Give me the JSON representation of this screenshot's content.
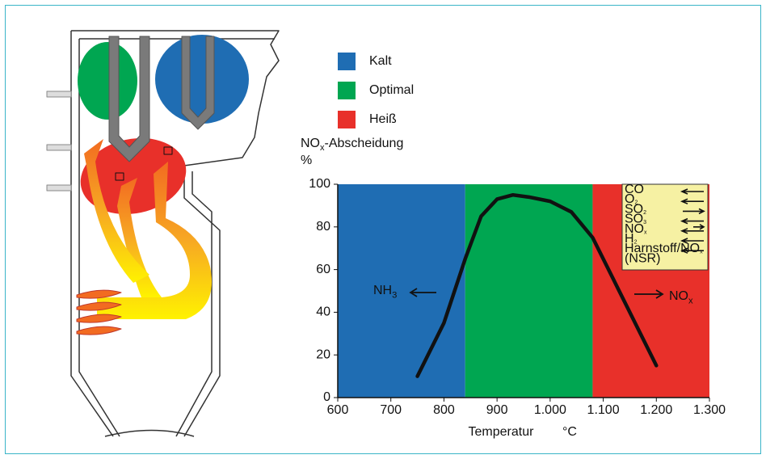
{
  "chart_data": {
    "type": "line",
    "y_label": {
      "text": "NO",
      "sub": "x",
      "rest": "-Abscheidung"
    },
    "y_unit": "%",
    "x_label": "Temperatur",
    "x_unit": "°C",
    "regions": [
      {
        "name": "Kalt",
        "color": "#1f6db3",
        "from": 600,
        "to": 840
      },
      {
        "name": "Optimal",
        "color": "#00a651",
        "from": 840,
        "to": 1080
      },
      {
        "name": "Heiß",
        "color": "#e8302a",
        "from": 1080,
        "to": 1300
      }
    ],
    "x": [
      750,
      800,
      840,
      870,
      900,
      930,
      960,
      1000,
      1040,
      1080,
      1120,
      1160,
      1200
    ],
    "series": [
      {
        "color": "#111111",
        "values": [
          10,
          35,
          65,
          85,
          93,
          95,
          94,
          92,
          87,
          75,
          55,
          35,
          15
        ]
      }
    ],
    "xlim": [
      600,
      1300
    ],
    "ylim": [
      0,
      100
    ],
    "xticks": [
      600,
      700,
      800,
      900,
      {
        "value": 1000,
        "label": "1.000"
      },
      {
        "value": 1100,
        "label": "1.100"
      },
      {
        "value": 1200,
        "label": "1.200"
      },
      {
        "value": 1300,
        "label": "1.300"
      }
    ],
    "yticks": [
      0,
      20,
      40,
      60,
      80,
      100
    ],
    "annotations": [
      {
        "text": "NH",
        "sub": "3"
      },
      {
        "text": "NO",
        "sub": "x"
      }
    ],
    "box_items": [
      {
        "text": "CO"
      },
      {
        "text": "O",
        "sub": "2"
      },
      {
        "text": "SO",
        "sub": "2"
      },
      {
        "text": "SO",
        "sub": "3"
      },
      {
        "text": "NO",
        "sub": "x"
      },
      {
        "text": "H",
        "sub": "2"
      },
      {
        "text": "Harnstoff/NO",
        "sub": "x"
      },
      {
        "text": "(NSR)"
      }
    ]
  }
}
